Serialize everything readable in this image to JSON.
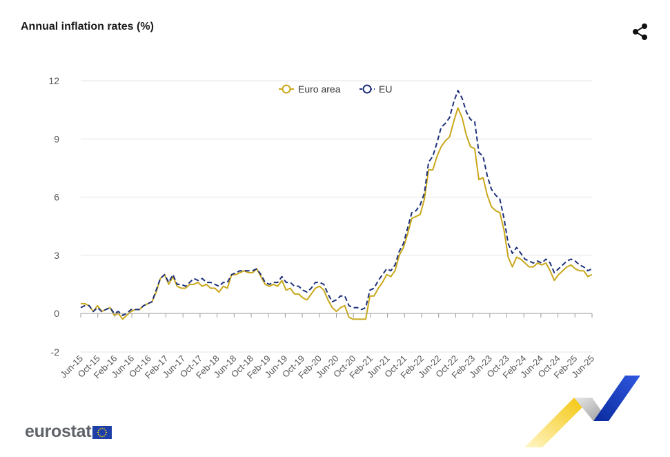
{
  "title": "Annual inflation rates (%)",
  "share_icon": "share-icon",
  "logo": {
    "text": "eurostat"
  },
  "colors": {
    "euro_area": "#C9A71A",
    "eu": "#1C2F7A",
    "grid": "#e6e6e6",
    "axis": "#9a9a9a",
    "tick_text": "#555555"
  },
  "chart_data": {
    "type": "line",
    "title": "Annual inflation rates (%)",
    "x_tick_labels": [
      "Jun-15",
      "Oct-15",
      "Feb-16",
      "Jun-16",
      "Oct-16",
      "Feb-17",
      "Jun-17",
      "Oct-17",
      "Feb-18",
      "Jun-18",
      "Oct-18",
      "Feb-19",
      "Jun-19",
      "Oct-19",
      "Feb-20",
      "Jun-20",
      "Oct-20",
      "Feb-21",
      "Jun-21",
      "Oct-21",
      "Feb-22",
      "Jun-22",
      "Oct-22",
      "Feb-23",
      "Jun-23",
      "Oct-23",
      "Feb-24",
      "Jun-24",
      "Oct-24",
      "Feb-25",
      "Jun-25"
    ],
    "x_start": "Jun-15",
    "x_end": "Jun-25",
    "y_ticks": [
      12,
      9,
      6,
      3,
      0,
      -2
    ],
    "ylim": [
      -2,
      12
    ],
    "grid": true,
    "legend_position": "top-center",
    "series": [
      {
        "name": "Euro area",
        "values": [
          0.5,
          0.5,
          0.4,
          0.1,
          0.4,
          0.1,
          0.2,
          0.3,
          -0.1,
          0.0,
          -0.3,
          -0.1,
          0.1,
          0.2,
          0.2,
          0.4,
          0.5,
          0.6,
          1.1,
          1.8,
          2.0,
          1.5,
          1.9,
          1.4,
          1.3,
          1.3,
          1.5,
          1.5,
          1.6,
          1.4,
          1.5,
          1.3,
          1.3,
          1.1,
          1.4,
          1.3,
          2.0,
          2.0,
          2.1,
          2.2,
          2.1,
          2.1,
          2.3,
          1.9,
          1.5,
          1.4,
          1.5,
          1.4,
          1.7,
          1.2,
          1.3,
          1.0,
          1.0,
          0.8,
          0.7,
          1.0,
          1.3,
          1.4,
          1.2,
          0.7,
          0.3,
          0.1,
          0.3,
          0.4,
          -0.2,
          -0.3,
          -0.3,
          -0.3,
          -0.3,
          0.9,
          0.9,
          1.3,
          1.6,
          2.0,
          1.9,
          2.2,
          3.0,
          3.4,
          4.1,
          4.9,
          5.0,
          5.1,
          5.9,
          7.4,
          7.4,
          8.1,
          8.6,
          8.9,
          9.1,
          9.9,
          10.6,
          10.1,
          9.2,
          8.6,
          8.5,
          6.9,
          7.0,
          6.1,
          5.5,
          5.3,
          5.2,
          4.3,
          2.9,
          2.4,
          2.9,
          2.8,
          2.6,
          2.4,
          2.4,
          2.6,
          2.5,
          2.6,
          2.2,
          1.7,
          2.0,
          2.2,
          2.4,
          2.5,
          2.3,
          2.2,
          2.2,
          1.9,
          2.0
        ],
        "color": "#C9A71A"
      },
      {
        "name": "EU",
        "values": [
          0.3,
          0.4,
          0.4,
          0.1,
          0.3,
          0.1,
          0.2,
          0.3,
          0.0,
          0.1,
          -0.1,
          0.0,
          0.2,
          0.2,
          0.2,
          0.4,
          0.5,
          0.6,
          1.2,
          1.8,
          2.0,
          1.6,
          2.0,
          1.5,
          1.5,
          1.4,
          1.6,
          1.8,
          1.7,
          1.8,
          1.6,
          1.6,
          1.5,
          1.4,
          1.6,
          1.6,
          2.0,
          2.1,
          2.2,
          2.2,
          2.2,
          2.2,
          2.3,
          2.0,
          1.6,
          1.5,
          1.6,
          1.6,
          1.9,
          1.6,
          1.6,
          1.4,
          1.4,
          1.2,
          1.1,
          1.3,
          1.6,
          1.6,
          1.5,
          1.0,
          0.6,
          0.7,
          0.9,
          0.9,
          0.4,
          0.3,
          0.3,
          0.2,
          0.3,
          1.2,
          1.3,
          1.7,
          2.0,
          2.3,
          2.2,
          2.5,
          3.2,
          3.6,
          4.4,
          5.2,
          5.3,
          5.6,
          6.2,
          7.8,
          8.1,
          8.8,
          9.6,
          9.8,
          10.1,
          10.9,
          11.5,
          11.1,
          10.4,
          10.0,
          9.9,
          8.3,
          8.1,
          7.1,
          6.4,
          6.1,
          5.9,
          4.9,
          3.6,
          3.1,
          3.4,
          3.1,
          2.8,
          2.7,
          2.6,
          2.7,
          2.6,
          2.8,
          2.6,
          2.1,
          2.3,
          2.5,
          2.7,
          2.8,
          2.7,
          2.5,
          2.4,
          2.2,
          2.3
        ],
        "color": "#1C2F7A"
      }
    ]
  }
}
